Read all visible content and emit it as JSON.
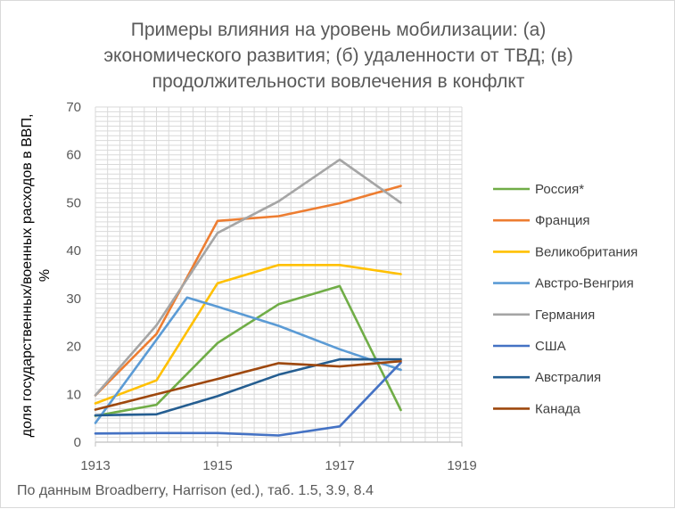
{
  "chart_data": {
    "type": "line",
    "title_lines": [
      "Примеры влияния на уровень мобилизации: (а)",
      "экономического развития; (б) удаленности от ТВД; (в)",
      "продолжительности вовлечения в конфлкт"
    ],
    "ylabel_lines": [
      "доля государственных/военных расходов в ВВП,",
      "%"
    ],
    "xlabel": "",
    "xlim": [
      1913,
      1919
    ],
    "ylim": [
      0,
      70
    ],
    "x_ticks": [
      "1913",
      "1915",
      "1917",
      "1919"
    ],
    "y_ticks": [
      "0",
      "10",
      "20",
      "30",
      "40",
      "50",
      "60",
      "70"
    ],
    "grid": true,
    "legend_position": "right",
    "series": [
      {
        "name": "Россия*",
        "color": "#70ad47",
        "x": [
          1913,
          1914,
          1915,
          1916,
          1917,
          1918
        ],
        "y": [
          5.5,
          7.8,
          20.7,
          28.8,
          32.6,
          6.7
        ]
      },
      {
        "name": "Франция",
        "color": "#ed7d31",
        "x": [
          1913,
          1914,
          1915,
          1916,
          1917,
          1918
        ],
        "y": [
          9.8,
          22.6,
          46.2,
          47.2,
          49.9,
          53.5
        ]
      },
      {
        "name": "Великобритания",
        "color": "#ffc000",
        "x": [
          1913,
          1914,
          1915,
          1916,
          1917,
          1918
        ],
        "y": [
          8.1,
          12.9,
          33.2,
          37.0,
          37.0,
          35.1
        ]
      },
      {
        "name": "Австро-Венгрия",
        "color": "#5b9bd5",
        "x": [
          1913,
          1914,
          1914.5,
          1915,
          1916,
          1917,
          1918
        ],
        "y": [
          4.0,
          21.4,
          30.2,
          28.3,
          24.3,
          19.4,
          15.1
        ]
      },
      {
        "name": "Германия",
        "color": "#a5a5a5",
        "x": [
          1913,
          1914,
          1915,
          1916,
          1917,
          1918
        ],
        "y": [
          9.8,
          24.4,
          43.7,
          50.3,
          59.0,
          50.0
        ]
      },
      {
        "name": "США",
        "color": "#4472c4",
        "x": [
          1913,
          1914,
          1915,
          1916,
          1917,
          1918
        ],
        "y": [
          1.8,
          1.9,
          1.9,
          1.4,
          3.3,
          16.6
        ]
      },
      {
        "name": "Австралия",
        "color": "#255e91",
        "x": [
          1913,
          1914,
          1915,
          1916,
          1917,
          1918
        ],
        "y": [
          5.6,
          5.8,
          9.6,
          14.1,
          17.3,
          17.3
        ]
      },
      {
        "name": "Канада",
        "color": "#9e480e",
        "x": [
          1913,
          1914,
          1915,
          1916,
          1917,
          1918
        ],
        "y": [
          6.8,
          10.0,
          13.2,
          16.5,
          15.8,
          16.9
        ]
      }
    ]
  },
  "source_note": "По данным Broadberry, Harrison (ed.), таб. 1.5, 3.9, 8.4"
}
